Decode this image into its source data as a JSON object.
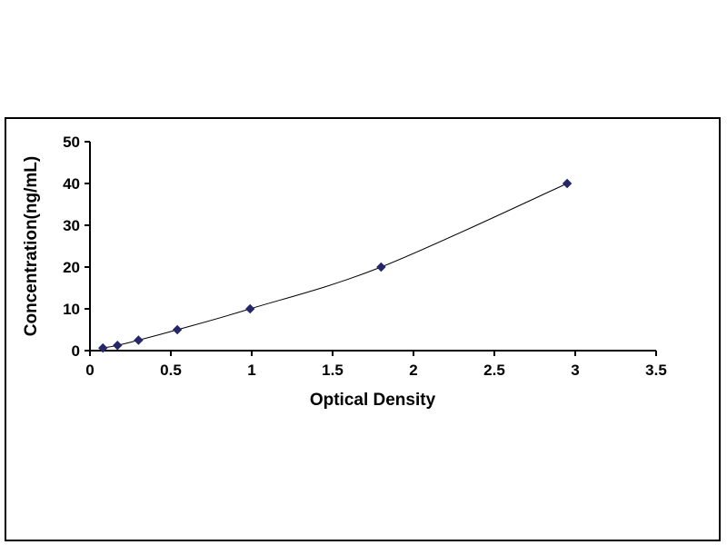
{
  "chart_data": {
    "type": "scatter",
    "title": "",
    "xlabel": "Optical Density",
    "ylabel": "Concentration(ng/mL)",
    "x": [
      0.08,
      0.17,
      0.3,
      0.54,
      0.99,
      1.8,
      2.95
    ],
    "y": [
      0.625,
      1.25,
      2.5,
      5,
      10,
      20,
      40
    ],
    "xlim": [
      0,
      3.5
    ],
    "ylim": [
      0,
      50
    ],
    "x_tick_values": [
      0,
      0.5,
      1,
      1.5,
      2,
      2.5,
      3,
      3.5
    ],
    "x_tick_labels": [
      "0",
      "0.5",
      "1",
      "1.5",
      "2",
      "2.5",
      "3",
      "3.5"
    ],
    "y_tick_values": [
      0,
      10,
      20,
      30,
      40,
      50
    ],
    "y_tick_labels": [
      "0",
      "10",
      "20",
      "30",
      "40",
      "50"
    ],
    "legend": [],
    "grid": "off",
    "marker_shape": "diamond",
    "marker_color": "#26266B",
    "line_color": "#000000",
    "axis_color": "#000000",
    "frame_border_color": "#000000"
  }
}
